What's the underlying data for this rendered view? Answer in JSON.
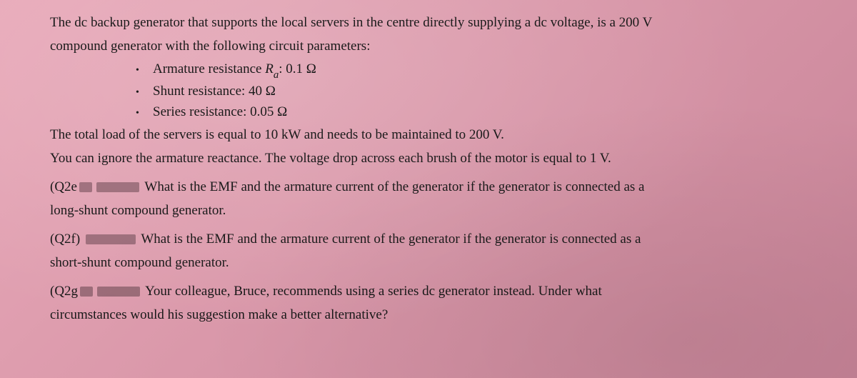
{
  "intro": {
    "line1": "The dc backup generator that supports the local servers in the centre directly supplying a dc voltage, is a 200 V",
    "line2": "compound generator with the following circuit parameters:"
  },
  "params": {
    "armature_prefix": "Armature resistance ",
    "armature_symbol_R": "R",
    "armature_symbol_sub": "a",
    "armature_suffix": ": 0.1 Ω",
    "shunt": "Shunt resistance: 40 Ω",
    "series": "Series resistance: 0.05 Ω"
  },
  "load": {
    "line1": "The total load of the servers is equal to 10 kW and needs to be maintained to 200 V.",
    "line2": "You can ignore the armature reactance. The voltage drop across each brush of the motor is equal to 1 V."
  },
  "q2e": {
    "label": "(Q2e",
    "body_part1": " What is the EMF and the armature current of the generator if the generator is connected as a",
    "body_part2": "long-shunt compound generator."
  },
  "q2f": {
    "label": "(Q2f)",
    "body_part1": " What is the EMF and the armature current of the generator if the generator is connected as a",
    "body_part2": "short-shunt compound generator."
  },
  "q2g": {
    "label": "(Q2g",
    "body_part1": " Your colleague, Bruce, recommends using a series dc generator instead. Under what",
    "body_part2": "circumstances would his suggestion make a better alternative?"
  },
  "redact_widths": {
    "short": 18,
    "med": 60,
    "long": 70
  }
}
